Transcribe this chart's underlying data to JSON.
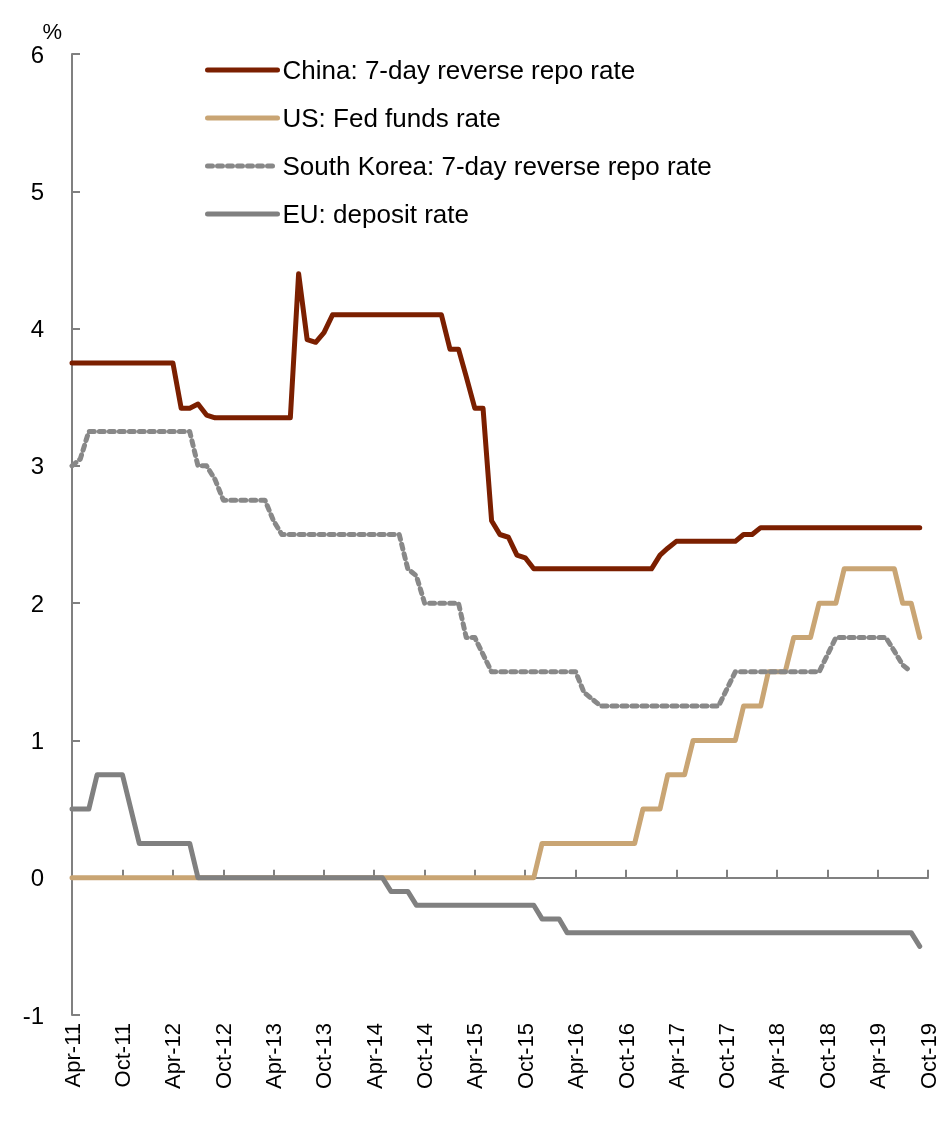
{
  "chart_data": {
    "type": "line",
    "ylabel": "%",
    "ylim": [
      -1,
      6
    ],
    "yticks": [
      -1,
      0,
      1,
      2,
      3,
      4,
      5,
      6
    ],
    "xlim": [
      "2011-04",
      "2019-10"
    ],
    "xticks": [
      {
        "value": "2011-04",
        "label": "Apr-11"
      },
      {
        "value": "2011-10",
        "label": "Oct-11"
      },
      {
        "value": "2012-04",
        "label": "Apr-12"
      },
      {
        "value": "2012-10",
        "label": "Oct-12"
      },
      {
        "value": "2013-04",
        "label": "Apr-13"
      },
      {
        "value": "2013-10",
        "label": "Oct-13"
      },
      {
        "value": "2014-04",
        "label": "Apr-14"
      },
      {
        "value": "2014-10",
        "label": "Oct-14"
      },
      {
        "value": "2015-04",
        "label": "Apr-15"
      },
      {
        "value": "2015-10",
        "label": "Oct-15"
      },
      {
        "value": "2016-04",
        "label": "Apr-16"
      },
      {
        "value": "2016-10",
        "label": "Oct-16"
      },
      {
        "value": "2017-04",
        "label": "Apr-17"
      },
      {
        "value": "2017-10",
        "label": "Oct-17"
      },
      {
        "value": "2018-04",
        "label": "Apr-18"
      },
      {
        "value": "2018-10",
        "label": "Oct-18"
      },
      {
        "value": "2019-04",
        "label": "Apr-19"
      },
      {
        "value": "2019-10",
        "label": "Oct-19"
      }
    ],
    "legend": "top left",
    "marker": "none",
    "series": [
      {
        "name": "China: 7-day reverse repo rate",
        "color": "#7b1f00",
        "line_style": "solid",
        "x": [
          "2011-04",
          "2012-04",
          "2012-05",
          "2012-06",
          "2012-07",
          "2012-08",
          "2012-09",
          "2013-06",
          "2013-07",
          "2013-08",
          "2013-09",
          "2013-10",
          "2013-11",
          "2014-12",
          "2015-01",
          "2015-02",
          "2015-03",
          "2015-04",
          "2015-05",
          "2015-06",
          "2015-07",
          "2015-08",
          "2015-09",
          "2015-10",
          "2015-11",
          "2017-01",
          "2017-02",
          "2017-03",
          "2017-04",
          "2017-11",
          "2017-12",
          "2018-01",
          "2018-02",
          "2019-09"
        ],
        "values": [
          3.75,
          3.75,
          3.42,
          3.42,
          3.45,
          3.37,
          3.35,
          3.35,
          4.4,
          3.92,
          3.9,
          3.97,
          4.1,
          4.1,
          3.85,
          3.85,
          3.65,
          3.42,
          3.42,
          2.6,
          2.5,
          2.48,
          2.35,
          2.33,
          2.25,
          2.25,
          2.35,
          2.4,
          2.45,
          2.45,
          2.5,
          2.5,
          2.55,
          2.55
        ]
      },
      {
        "name": "US: Fed funds rate",
        "color": "#c9a574",
        "line_style": "solid",
        "x": [
          "2011-04",
          "2015-11",
          "2015-12",
          "2016-11",
          "2016-12",
          "2017-02",
          "2017-03",
          "2017-05",
          "2017-06",
          "2017-11",
          "2017-12",
          "2018-02",
          "2018-03",
          "2018-05",
          "2018-06",
          "2018-08",
          "2018-09",
          "2018-11",
          "2018-12",
          "2019-06",
          "2019-07",
          "2019-08",
          "2019-09"
        ],
        "values": [
          0,
          0,
          0.25,
          0.25,
          0.5,
          0.5,
          0.75,
          0.75,
          1,
          1,
          1.25,
          1.25,
          1.5,
          1.5,
          1.75,
          1.75,
          2,
          2,
          2.25,
          2.25,
          2,
          2,
          1.75
        ]
      },
      {
        "name": "South Korea: 7-day reverse repo rate",
        "color": "#888888",
        "line_style": "dotted",
        "x": [
          "2011-04",
          "2011-05",
          "2011-06",
          "2012-06",
          "2012-07",
          "2012-08",
          "2012-09",
          "2012-10",
          "2013-03",
          "2013-04",
          "2013-05",
          "2014-07",
          "2014-08",
          "2014-09",
          "2014-10",
          "2015-02",
          "2015-03",
          "2015-04",
          "2015-06",
          "2016-04",
          "2016-05",
          "2016-07",
          "2017-09",
          "2017-11",
          "2018-09",
          "2018-11",
          "2019-05",
          "2019-06",
          "2019-07",
          "2019-08"
        ],
        "values": [
          3.0,
          3.05,
          3.25,
          3.25,
          3.0,
          3.0,
          2.9,
          2.75,
          2.75,
          2.6,
          2.5,
          2.5,
          2.25,
          2.2,
          2.0,
          2.0,
          1.75,
          1.75,
          1.5,
          1.5,
          1.35,
          1.25,
          1.25,
          1.5,
          1.5,
          1.75,
          1.75,
          1.65,
          1.55,
          1.5
        ]
      },
      {
        "name": "EU: deposit rate",
        "color": "#808080",
        "line_style": "solid",
        "x": [
          "2011-04",
          "2011-06",
          "2011-07",
          "2011-10",
          "2011-12",
          "2012-06",
          "2012-07",
          "2014-05",
          "2014-06",
          "2014-08",
          "2014-09",
          "2015-11",
          "2015-12",
          "2016-02",
          "2016-03",
          "2019-08",
          "2019-09"
        ],
        "values": [
          0.5,
          0.5,
          0.75,
          0.75,
          0.25,
          0.25,
          0,
          0,
          -0.1,
          -0.1,
          -0.2,
          -0.2,
          -0.3,
          -0.3,
          -0.4,
          -0.4,
          -0.5
        ]
      }
    ]
  }
}
